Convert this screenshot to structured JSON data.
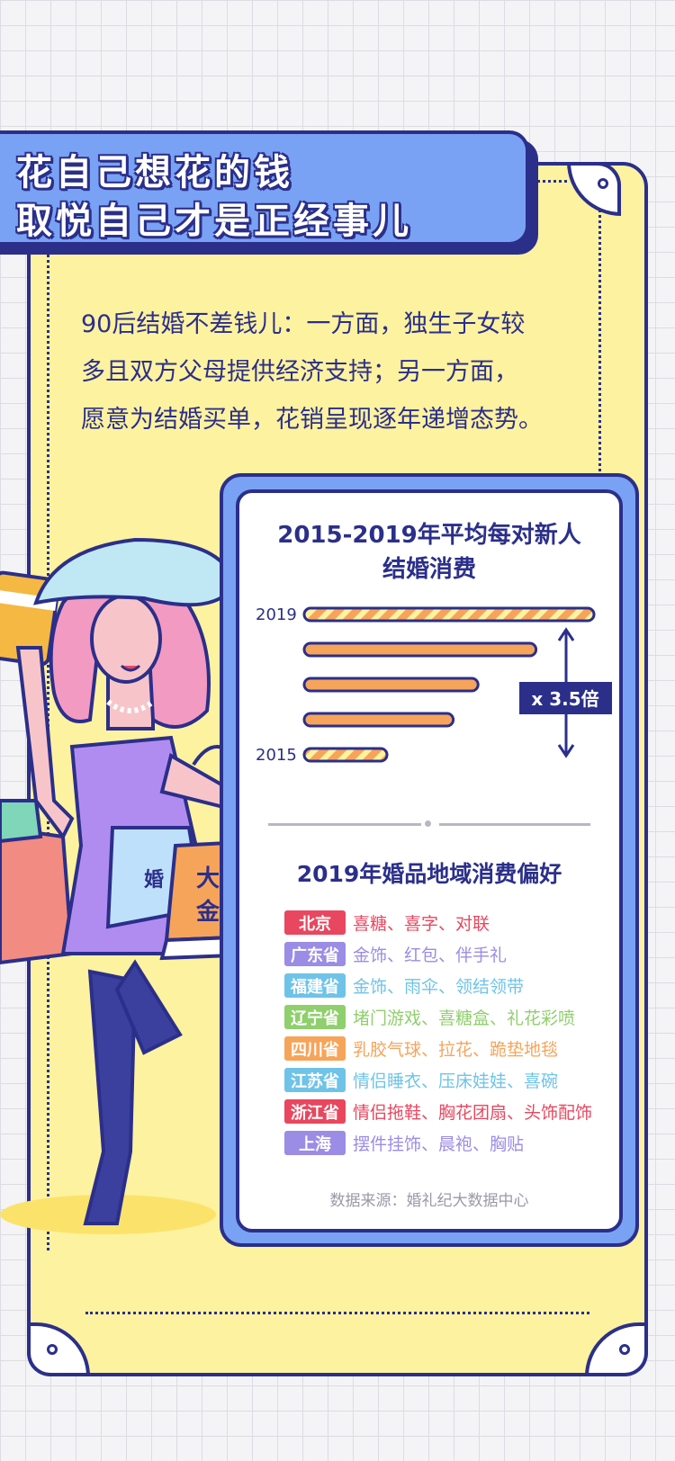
{
  "banner": {
    "line1": "花自己想花的钱",
    "line2": "取悦自己才是正经事儿"
  },
  "intro": {
    "line1": "90后结婚不差钱儿：一方面，独生子女较",
    "line2": "多且双方父母提供经济支持；另一方面，",
    "line3": "愿意为结婚买单，花销呈现逐年递增态势。"
  },
  "bag_text": {
    "orange_line1": "大金",
    "orange_line2": "金饰",
    "blue": "婚"
  },
  "chart_data": {
    "type": "bar",
    "orientation": "horizontal",
    "title_line1": "2015-2019年平均每对新人",
    "title_line2": "结婚消费",
    "labeled_categories": {
      "top": "2019",
      "bottom": "2015"
    },
    "categories": [
      "2019",
      "",
      "",
      "",
      "2015"
    ],
    "values": [
      3.5,
      2.8,
      2.1,
      1.8,
      1.0
    ],
    "annotation": "x 3.5倍",
    "colors": {
      "bar": "#f7a45b",
      "stripe": "#fdf29f",
      "outline": "#2b2f8a"
    }
  },
  "regions": {
    "title": "2019年婚品地域消费偏好",
    "items": [
      {
        "name": "北京",
        "prefs": "喜糖、喜字、对联",
        "color": "#e8475f"
      },
      {
        "name": "广东省",
        "prefs": "金饰、红包、伴手礼",
        "color": "#9b8ce6"
      },
      {
        "name": "福建省",
        "prefs": "金饰、雨伞、领结领带",
        "color": "#6fc3e8"
      },
      {
        "name": "辽宁省",
        "prefs": "堵门游戏、喜糖盒、礼花彩喷",
        "color": "#8fcf6c"
      },
      {
        "name": "四川省",
        "prefs": "乳胶气球、拉花、跪垫地毯",
        "color": "#f7a45b"
      },
      {
        "name": "江苏省",
        "prefs": "情侣睡衣、压床娃娃、喜碗",
        "color": "#6fc3e8"
      },
      {
        "name": "浙江省",
        "prefs": "情侣拖鞋、胸花团扇、头饰配饰",
        "color": "#e8475f"
      },
      {
        "name": "上海",
        "prefs": "摆件挂饰、晨袍、胸贴",
        "color": "#9b8ce6"
      }
    ]
  },
  "source": "数据来源：婚礼纪大数据中心"
}
